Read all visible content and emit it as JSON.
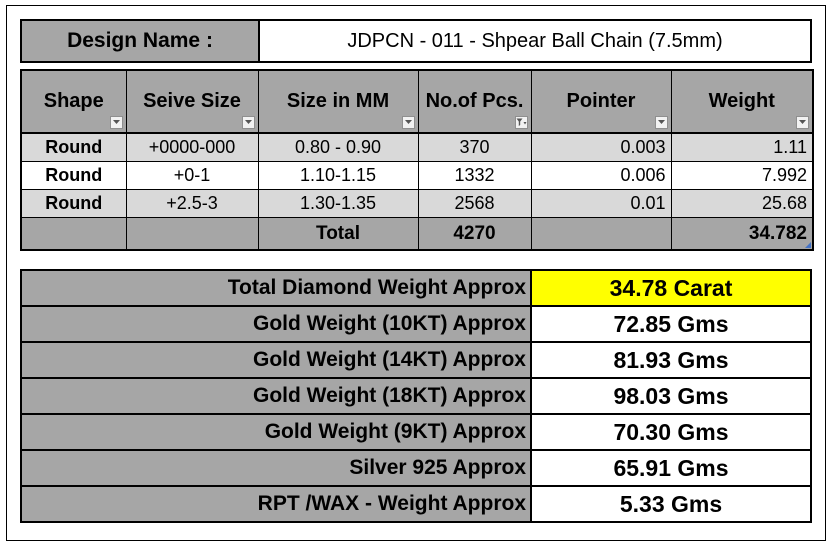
{
  "design": {
    "label": "Design Name :",
    "value": "JDPCN - 011 - Shpear Ball Chain (7.5mm)"
  },
  "table": {
    "headers": [
      "Shape",
      "Seive Size",
      "Size in MM",
      "No.of Pcs.",
      "Pointer",
      "Weight"
    ],
    "filter_icons": [
      "dropdown-arrow",
      "dropdown-arrow",
      "dropdown-arrow",
      "filter-sort-icon",
      "dropdown-arrow",
      "dropdown-arrow"
    ],
    "rows": [
      {
        "shape": "Round",
        "seive": "+0000-000",
        "mm": "0.80 - 0.90",
        "pcs": "370",
        "pointer": "0.003",
        "weight": "1.11"
      },
      {
        "shape": "Round",
        "seive": "+0-1",
        "mm": "1.10-1.15",
        "pcs": "1332",
        "pointer": "0.006",
        "weight": "7.992"
      },
      {
        "shape": "Round",
        "seive": "+2.5-3",
        "mm": "1.30-1.35",
        "pcs": "2568",
        "pointer": "0.01",
        "weight": "25.68"
      }
    ],
    "total": {
      "label": "Total",
      "pcs": "4270",
      "weight": "34.782"
    }
  },
  "summary": [
    {
      "label": "Total Diamond Weight Approx",
      "value": "34.78 Carat"
    },
    {
      "label": "Gold Weight (10KT) Approx",
      "value": "72.85 Gms"
    },
    {
      "label": "Gold Weight (14KT) Approx",
      "value": "81.93 Gms"
    },
    {
      "label": "Gold Weight (18KT) Approx",
      "value": "98.03 Gms"
    },
    {
      "label": "Gold Weight (9KT) Approx",
      "value": "70.30 Gms"
    },
    {
      "label": "Silver 925 Approx",
      "value": "65.91 Gms"
    },
    {
      "label": "RPT /WAX - Weight Approx",
      "value": "5.33 Gms"
    }
  ],
  "colors": {
    "header_fill": "#a6a6a6",
    "shaded_row": "#d9d9d9",
    "highlight": "#ffff00"
  }
}
